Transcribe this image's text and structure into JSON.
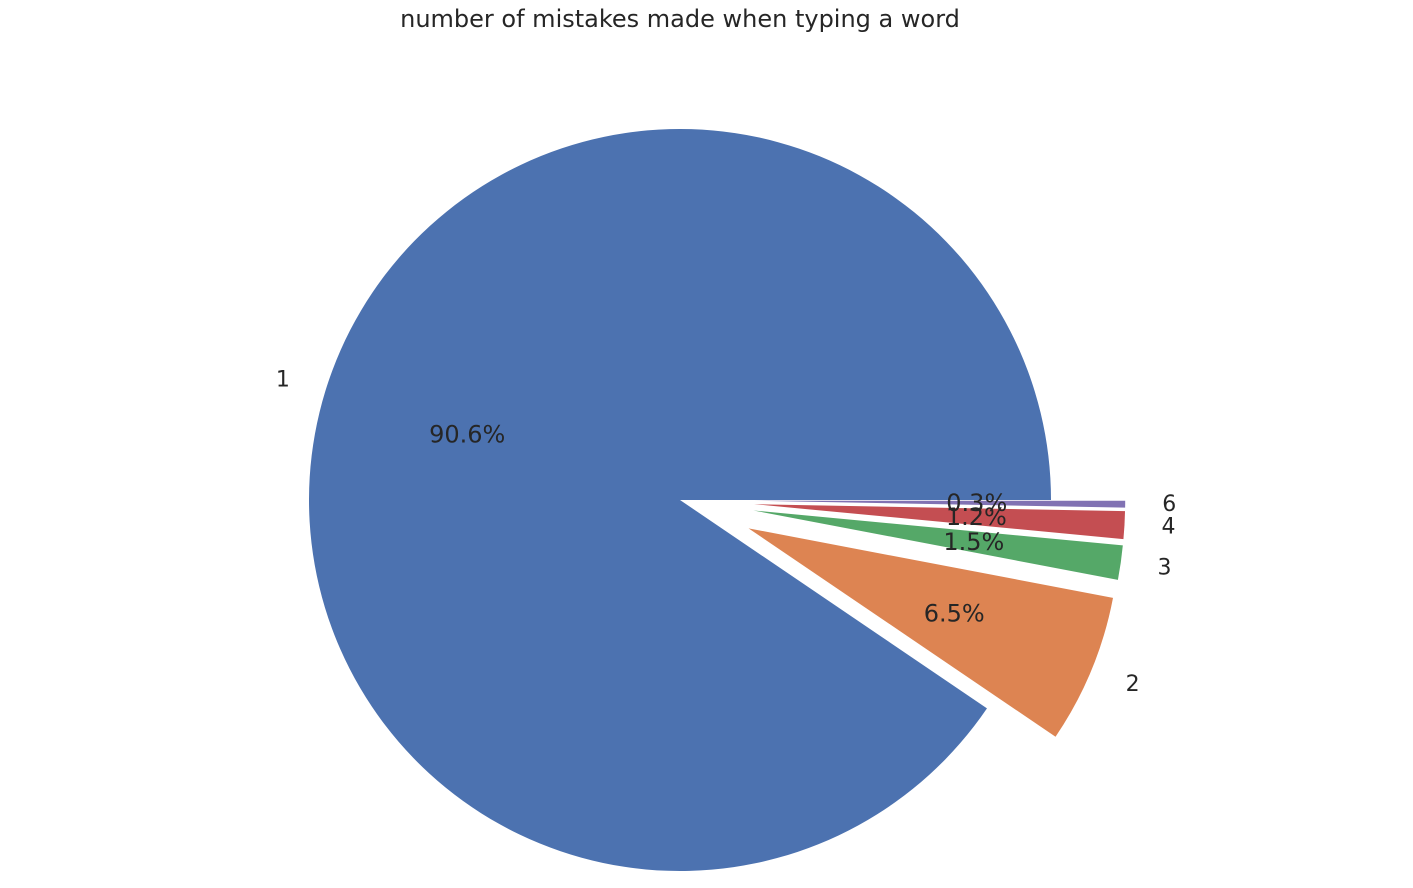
{
  "chart_data": {
    "type": "pie",
    "title": "number of mistakes made when typing a word",
    "labels": [
      "1",
      "2",
      "3",
      "4",
      "6"
    ],
    "values": [
      90.6,
      6.5,
      1.5,
      1.2,
      0.3
    ],
    "percent_labels": [
      "90.6%",
      "6.5%",
      "1.5%",
      "1.2%",
      "0.3%"
    ],
    "explode": [
      0,
      0.2,
      0.2,
      0.2,
      0.2
    ],
    "colors": [
      "#4c72b0",
      "#dd8452",
      "#55a868",
      "#c44e52",
      "#8172b3"
    ],
    "start_angle_deg": 0,
    "direction": "counterclockwise",
    "legend": "none"
  }
}
